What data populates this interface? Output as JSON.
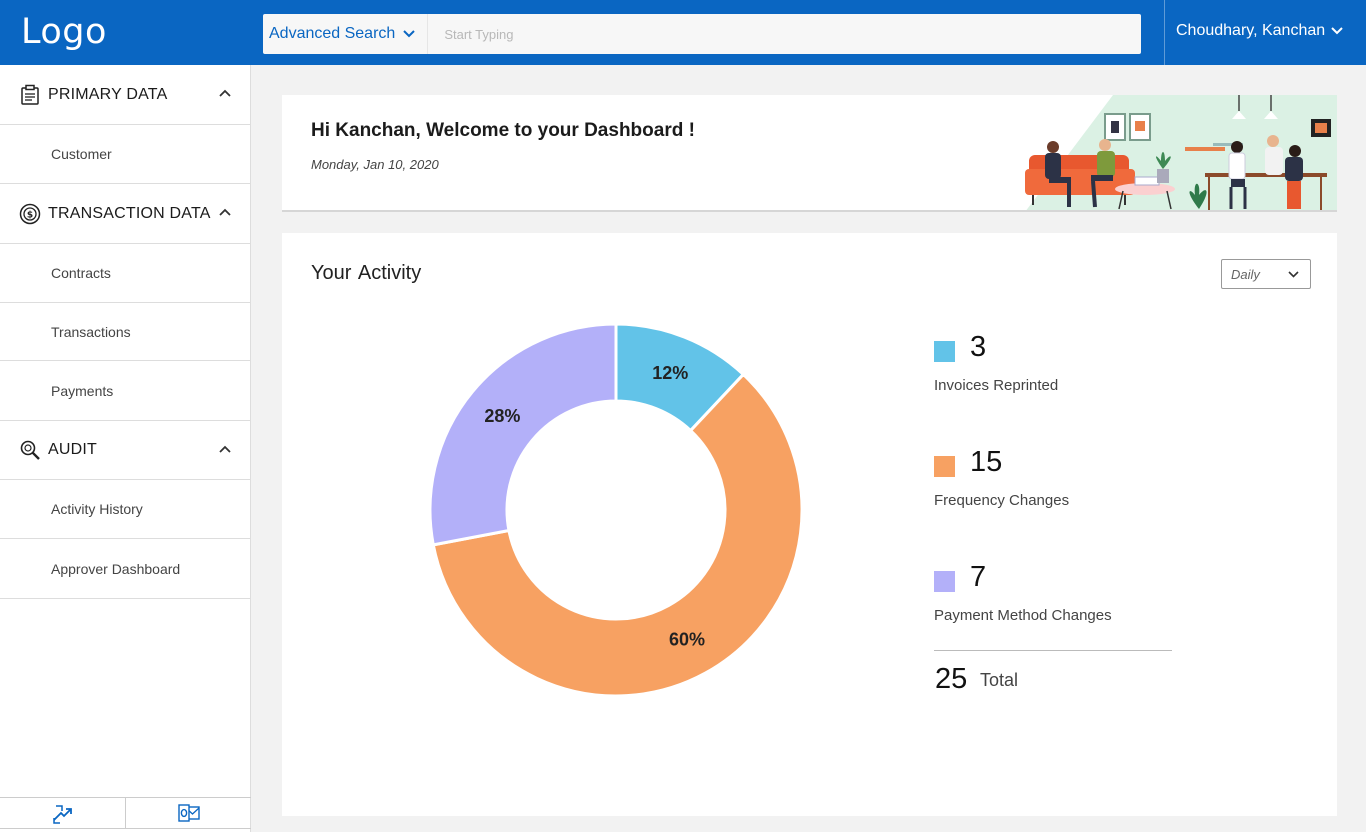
{
  "header": {
    "logo": "Logo",
    "advanced_search": "Advanced Search",
    "search_placeholder": "Start Typing",
    "user_name": "Choudhary, Kanchan"
  },
  "sidebar": {
    "sections": [
      {
        "label": "PRIMARY DATA",
        "icon": "clipboard-icon",
        "items": [
          "Customer"
        ]
      },
      {
        "label": "TRANSACTION DATA",
        "icon": "dollar-coin-icon",
        "items": [
          "Contracts",
          "Transactions",
          "Payments"
        ]
      },
      {
        "label": "AUDIT",
        "icon": "audit-search-icon",
        "items": [
          "Activity History",
          "Approver Dashboard"
        ]
      }
    ],
    "footer_icons": [
      "transfer-arrows-icon",
      "outlook-mail-icon"
    ]
  },
  "welcome": {
    "title": "Hi Kanchan, Welcome to  your Dashboard !",
    "date": "Monday, Jan 10, 2020"
  },
  "activity": {
    "title": "Your  Activity",
    "period": "Daily",
    "total_value": "25",
    "total_label": "Total"
  },
  "colors": {
    "primary": "#0a66c2",
    "invoices": "#62c3e8",
    "frequency": "#f7a162",
    "payment": "#b3b0f9"
  },
  "chart_data": {
    "type": "pie",
    "title": "",
    "categories": [
      "Invoices Reprinted",
      "Frequency Changes",
      "Payment Method Changes"
    ],
    "values": [
      3,
      15,
      7
    ],
    "labels": [
      "12%",
      "60%",
      "28%"
    ],
    "value_labels": [
      "3",
      "15",
      "7"
    ],
    "colors": [
      "#62c3e8",
      "#f7a162",
      "#b3b0f9"
    ],
    "legend_position": "right"
  }
}
